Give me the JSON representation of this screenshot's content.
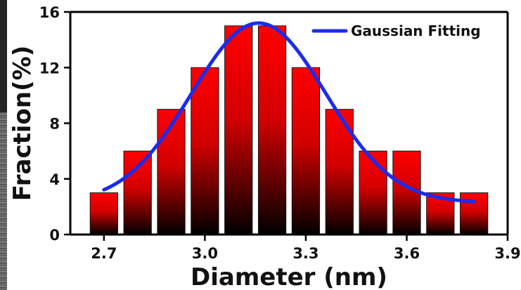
{
  "chart_data": {
    "type": "bar",
    "title": "",
    "xlabel": "Diameter (nm)",
    "ylabel": "Fraction(%)",
    "xlim": [
      2.6,
      3.9
    ],
    "ylim": [
      0,
      16
    ],
    "x_ticks": [
      2.7,
      3.0,
      3.3,
      3.6,
      3.9
    ],
    "x_tick_labels": [
      "2.7",
      "3.0",
      "3.3",
      "3.6",
      "3.9"
    ],
    "y_ticks": [
      0,
      4,
      8,
      12,
      16
    ],
    "y_tick_labels": [
      "0",
      "4",
      "8",
      "12",
      "16"
    ],
    "x": [
      2.7,
      2.8,
      2.9,
      3.0,
      3.1,
      3.2,
      3.3,
      3.4,
      3.5,
      3.6,
      3.7,
      3.8
    ],
    "values": [
      3,
      6,
      9,
      12,
      15,
      15,
      12,
      9,
      6,
      6,
      3,
      3
    ],
    "bar_color_top": "#ff0000",
    "bar_color_bottom": "#000000",
    "fit": {
      "name": "Gaussian Fitting",
      "color": "#1b2bf0",
      "x_range": [
        2.7,
        3.8
      ],
      "baseline": 2.3,
      "amplitude": 12.9,
      "center": 3.16,
      "sigma": 0.2
    },
    "legend_position": "top-right",
    "grid": false
  }
}
